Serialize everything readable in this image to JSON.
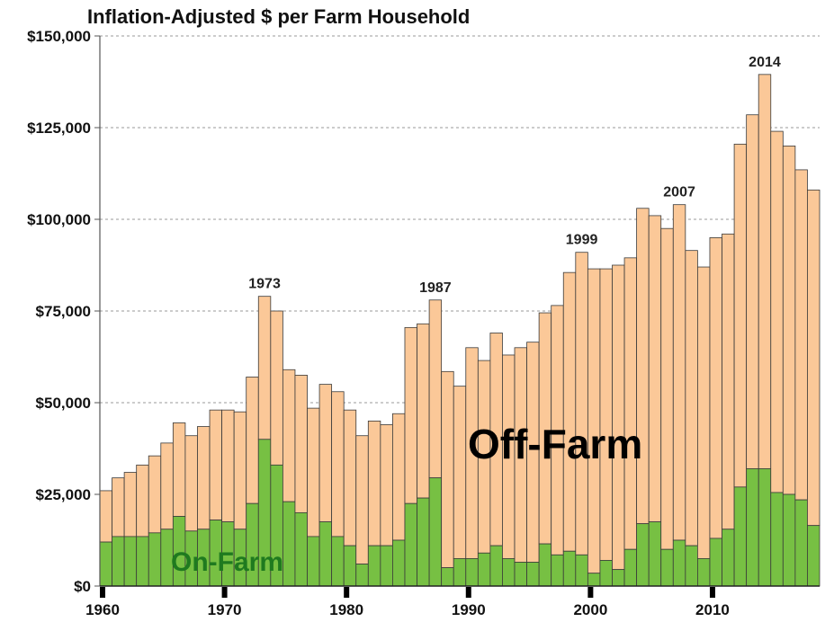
{
  "chart_data": {
    "type": "bar",
    "stacked": true,
    "title": "Inflation-Adjusted $ per Farm Household",
    "xlabel": "",
    "ylabel": "",
    "ylim": [
      0,
      150000
    ],
    "yticks": [
      "$0",
      "$25,000",
      "$50,000",
      "$75,000",
      "$100,000",
      "$125,000",
      "$150,000"
    ],
    "ytick_values": [
      0,
      25000,
      50000,
      75000,
      100000,
      125000,
      150000
    ],
    "xticks": [
      "1960",
      "1970",
      "1980",
      "1990",
      "2000",
      "2010"
    ],
    "xtick_values": [
      1960,
      1970,
      1980,
      1990,
      2000,
      2010
    ],
    "grid": true,
    "colors": {
      "on_farm": "#77c043",
      "off_farm": "#fbc898",
      "edge": "#3a3a3a",
      "grid": "#999999"
    },
    "years": [
      1960,
      1961,
      1962,
      1963,
      1964,
      1965,
      1966,
      1967,
      1968,
      1969,
      1970,
      1971,
      1972,
      1973,
      1974,
      1975,
      1976,
      1977,
      1978,
      1979,
      1980,
      1981,
      1982,
      1983,
      1984,
      1985,
      1986,
      1987,
      1988,
      1989,
      1990,
      1991,
      1992,
      1993,
      1994,
      1995,
      1996,
      1997,
      1998,
      1999,
      2000,
      2001,
      2002,
      2003,
      2004,
      2005,
      2006,
      2007,
      2008,
      2009,
      2010,
      2011,
      2012,
      2013,
      2014,
      2015,
      2016,
      2017,
      2018
    ],
    "series": [
      {
        "name": "On-Farm",
        "values": [
          12000,
          13500,
          13500,
          13500,
          14500,
          15500,
          19000,
          15000,
          15500,
          18000,
          17500,
          15500,
          22500,
          40000,
          33000,
          23000,
          20000,
          13500,
          17500,
          13500,
          11000,
          6000,
          11000,
          11000,
          12500,
          22500,
          24000,
          29500,
          5000,
          7500,
          7500,
          9000,
          11000,
          7500,
          6500,
          6500,
          11500,
          8500,
          9500,
          8500,
          3500,
          7000,
          4500,
          10000,
          17000,
          17500,
          10000,
          12500,
          11000,
          7500,
          13000,
          15500,
          27000,
          32000,
          32000,
          25500,
          25000,
          23500,
          16500
        ]
      },
      {
        "name": "Off-Farm",
        "values": [
          14000,
          16000,
          17500,
          19500,
          21000,
          23500,
          25500,
          26000,
          28000,
          30000,
          30500,
          32000,
          34500,
          39000,
          42000,
          36000,
          37500,
          35000,
          37500,
          39500,
          37000,
          35000,
          34000,
          33000,
          34500,
          48000,
          47500,
          48500,
          53500,
          47000,
          57500,
          52500,
          58000,
          55500,
          58500,
          60000,
          63000,
          68000,
          76000,
          82500,
          83000,
          79500,
          83000,
          79500,
          86000,
          83500,
          87500,
          91500,
          80500,
          79500,
          82000,
          80500,
          93500,
          96500,
          107500,
          98500,
          95000,
          90000,
          91500
        ]
      }
    ],
    "annotations": [
      {
        "text": "1973",
        "year": 1973
      },
      {
        "text": "1987",
        "year": 1987
      },
      {
        "text": "1999",
        "year": 1999
      },
      {
        "text": "2007",
        "year": 2007
      },
      {
        "text": "2014",
        "year": 2014
      }
    ],
    "series_labels": {
      "off_farm": "Off-Farm",
      "on_farm": "On-Farm"
    }
  }
}
